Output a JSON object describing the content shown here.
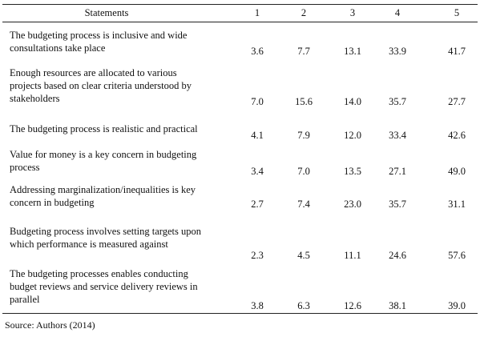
{
  "table": {
    "columns": [
      "Statements",
      "1",
      "2",
      "3",
      "4",
      "5"
    ],
    "rows": [
      {
        "statement": "The budgeting process is inclusive and wide\nconsultations take place",
        "values": [
          "3.6",
          "7.7",
          "13.1",
          "33.9",
          "41.7"
        ]
      },
      {
        "statement": "Enough resources are allocated to various\nprojects based on clear criteria understood by\nstakeholders",
        "values": [
          "7.0",
          "15.6",
          "14.0",
          "35.7",
          "27.7"
        ]
      },
      {
        "statement": "The budgeting process is realistic and practical",
        "values": [
          "4.1",
          "7.9",
          "12.0",
          "33.4",
          "42.6"
        ]
      },
      {
        "statement": "Value for money is a key concern in budgeting\nprocess",
        "values": [
          "3.4",
          "7.0",
          "13.5",
          "27.1",
          "49.0"
        ]
      },
      {
        "statement": "Addressing marginalization/inequalities is key\nconcern in budgeting",
        "values": [
          "2.7",
          "7.4",
          "23.0",
          "35.7",
          "31.1"
        ]
      },
      {
        "statement": "Budgeting process involves setting targets upon\nwhich performance is measured against",
        "values": [
          "2.3",
          "4.5",
          "11.1",
          "24.6",
          "57.6"
        ]
      },
      {
        "statement": "The budgeting processes enables conducting\nbudget reviews and service delivery reviews in\nparallel",
        "values": [
          "3.8",
          "6.3",
          "12.6",
          "38.1",
          "39.0"
        ]
      }
    ]
  },
  "source": "Source: Authors (2014)"
}
